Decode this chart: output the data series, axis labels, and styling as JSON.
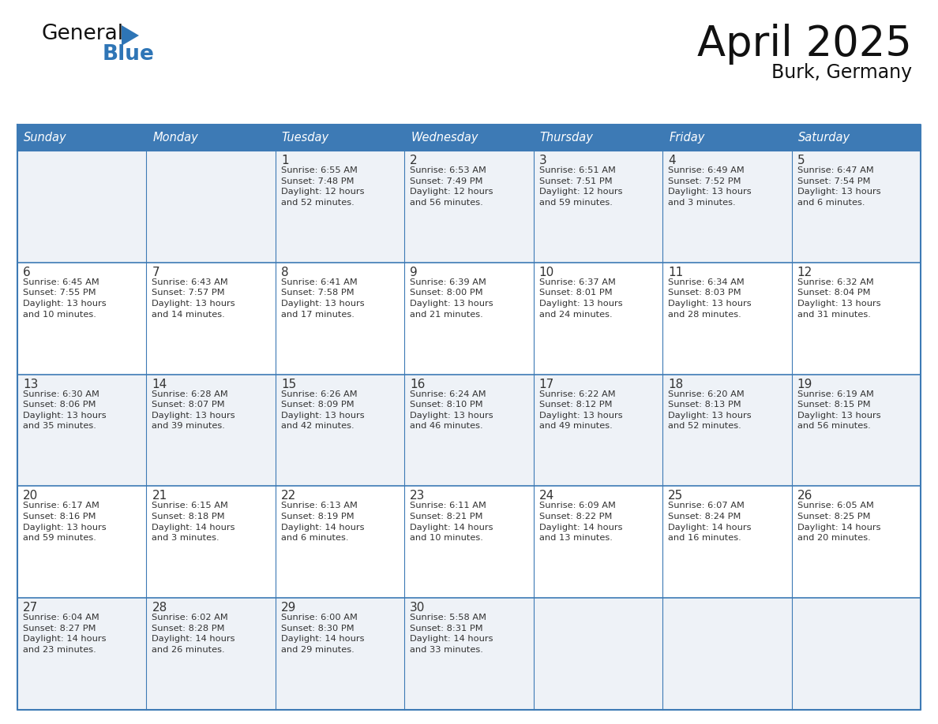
{
  "title": "April 2025",
  "subtitle": "Burk, Germany",
  "header_bg_color": "#3d7ab5",
  "header_text_color": "#ffffff",
  "days_of_week": [
    "Sunday",
    "Monday",
    "Tuesday",
    "Wednesday",
    "Thursday",
    "Friday",
    "Saturday"
  ],
  "cell_bg_even": "#eef2f7",
  "cell_bg_odd": "#ffffff",
  "cell_text_color": "#333333",
  "border_color": "#3d7ab5",
  "logo_general_color": "#111111",
  "logo_blue_color": "#2e75b6",
  "logo_triangle_color": "#2e75b6",
  "calendar_data": [
    [
      {
        "day": null,
        "info": null
      },
      {
        "day": null,
        "info": null
      },
      {
        "day": 1,
        "info": "Sunrise: 6:55 AM\nSunset: 7:48 PM\nDaylight: 12 hours\nand 52 minutes."
      },
      {
        "day": 2,
        "info": "Sunrise: 6:53 AM\nSunset: 7:49 PM\nDaylight: 12 hours\nand 56 minutes."
      },
      {
        "day": 3,
        "info": "Sunrise: 6:51 AM\nSunset: 7:51 PM\nDaylight: 12 hours\nand 59 minutes."
      },
      {
        "day": 4,
        "info": "Sunrise: 6:49 AM\nSunset: 7:52 PM\nDaylight: 13 hours\nand 3 minutes."
      },
      {
        "day": 5,
        "info": "Sunrise: 6:47 AM\nSunset: 7:54 PM\nDaylight: 13 hours\nand 6 minutes."
      }
    ],
    [
      {
        "day": 6,
        "info": "Sunrise: 6:45 AM\nSunset: 7:55 PM\nDaylight: 13 hours\nand 10 minutes."
      },
      {
        "day": 7,
        "info": "Sunrise: 6:43 AM\nSunset: 7:57 PM\nDaylight: 13 hours\nand 14 minutes."
      },
      {
        "day": 8,
        "info": "Sunrise: 6:41 AM\nSunset: 7:58 PM\nDaylight: 13 hours\nand 17 minutes."
      },
      {
        "day": 9,
        "info": "Sunrise: 6:39 AM\nSunset: 8:00 PM\nDaylight: 13 hours\nand 21 minutes."
      },
      {
        "day": 10,
        "info": "Sunrise: 6:37 AM\nSunset: 8:01 PM\nDaylight: 13 hours\nand 24 minutes."
      },
      {
        "day": 11,
        "info": "Sunrise: 6:34 AM\nSunset: 8:03 PM\nDaylight: 13 hours\nand 28 minutes."
      },
      {
        "day": 12,
        "info": "Sunrise: 6:32 AM\nSunset: 8:04 PM\nDaylight: 13 hours\nand 31 minutes."
      }
    ],
    [
      {
        "day": 13,
        "info": "Sunrise: 6:30 AM\nSunset: 8:06 PM\nDaylight: 13 hours\nand 35 minutes."
      },
      {
        "day": 14,
        "info": "Sunrise: 6:28 AM\nSunset: 8:07 PM\nDaylight: 13 hours\nand 39 minutes."
      },
      {
        "day": 15,
        "info": "Sunrise: 6:26 AM\nSunset: 8:09 PM\nDaylight: 13 hours\nand 42 minutes."
      },
      {
        "day": 16,
        "info": "Sunrise: 6:24 AM\nSunset: 8:10 PM\nDaylight: 13 hours\nand 46 minutes."
      },
      {
        "day": 17,
        "info": "Sunrise: 6:22 AM\nSunset: 8:12 PM\nDaylight: 13 hours\nand 49 minutes."
      },
      {
        "day": 18,
        "info": "Sunrise: 6:20 AM\nSunset: 8:13 PM\nDaylight: 13 hours\nand 52 minutes."
      },
      {
        "day": 19,
        "info": "Sunrise: 6:19 AM\nSunset: 8:15 PM\nDaylight: 13 hours\nand 56 minutes."
      }
    ],
    [
      {
        "day": 20,
        "info": "Sunrise: 6:17 AM\nSunset: 8:16 PM\nDaylight: 13 hours\nand 59 minutes."
      },
      {
        "day": 21,
        "info": "Sunrise: 6:15 AM\nSunset: 8:18 PM\nDaylight: 14 hours\nand 3 minutes."
      },
      {
        "day": 22,
        "info": "Sunrise: 6:13 AM\nSunset: 8:19 PM\nDaylight: 14 hours\nand 6 minutes."
      },
      {
        "day": 23,
        "info": "Sunrise: 6:11 AM\nSunset: 8:21 PM\nDaylight: 14 hours\nand 10 minutes."
      },
      {
        "day": 24,
        "info": "Sunrise: 6:09 AM\nSunset: 8:22 PM\nDaylight: 14 hours\nand 13 minutes."
      },
      {
        "day": 25,
        "info": "Sunrise: 6:07 AM\nSunset: 8:24 PM\nDaylight: 14 hours\nand 16 minutes."
      },
      {
        "day": 26,
        "info": "Sunrise: 6:05 AM\nSunset: 8:25 PM\nDaylight: 14 hours\nand 20 minutes."
      }
    ],
    [
      {
        "day": 27,
        "info": "Sunrise: 6:04 AM\nSunset: 8:27 PM\nDaylight: 14 hours\nand 23 minutes."
      },
      {
        "day": 28,
        "info": "Sunrise: 6:02 AM\nSunset: 8:28 PM\nDaylight: 14 hours\nand 26 minutes."
      },
      {
        "day": 29,
        "info": "Sunrise: 6:00 AM\nSunset: 8:30 PM\nDaylight: 14 hours\nand 29 minutes."
      },
      {
        "day": 30,
        "info": "Sunrise: 5:58 AM\nSunset: 8:31 PM\nDaylight: 14 hours\nand 33 minutes."
      },
      {
        "day": null,
        "info": null
      },
      {
        "day": null,
        "info": null
      },
      {
        "day": null,
        "info": null
      }
    ]
  ]
}
